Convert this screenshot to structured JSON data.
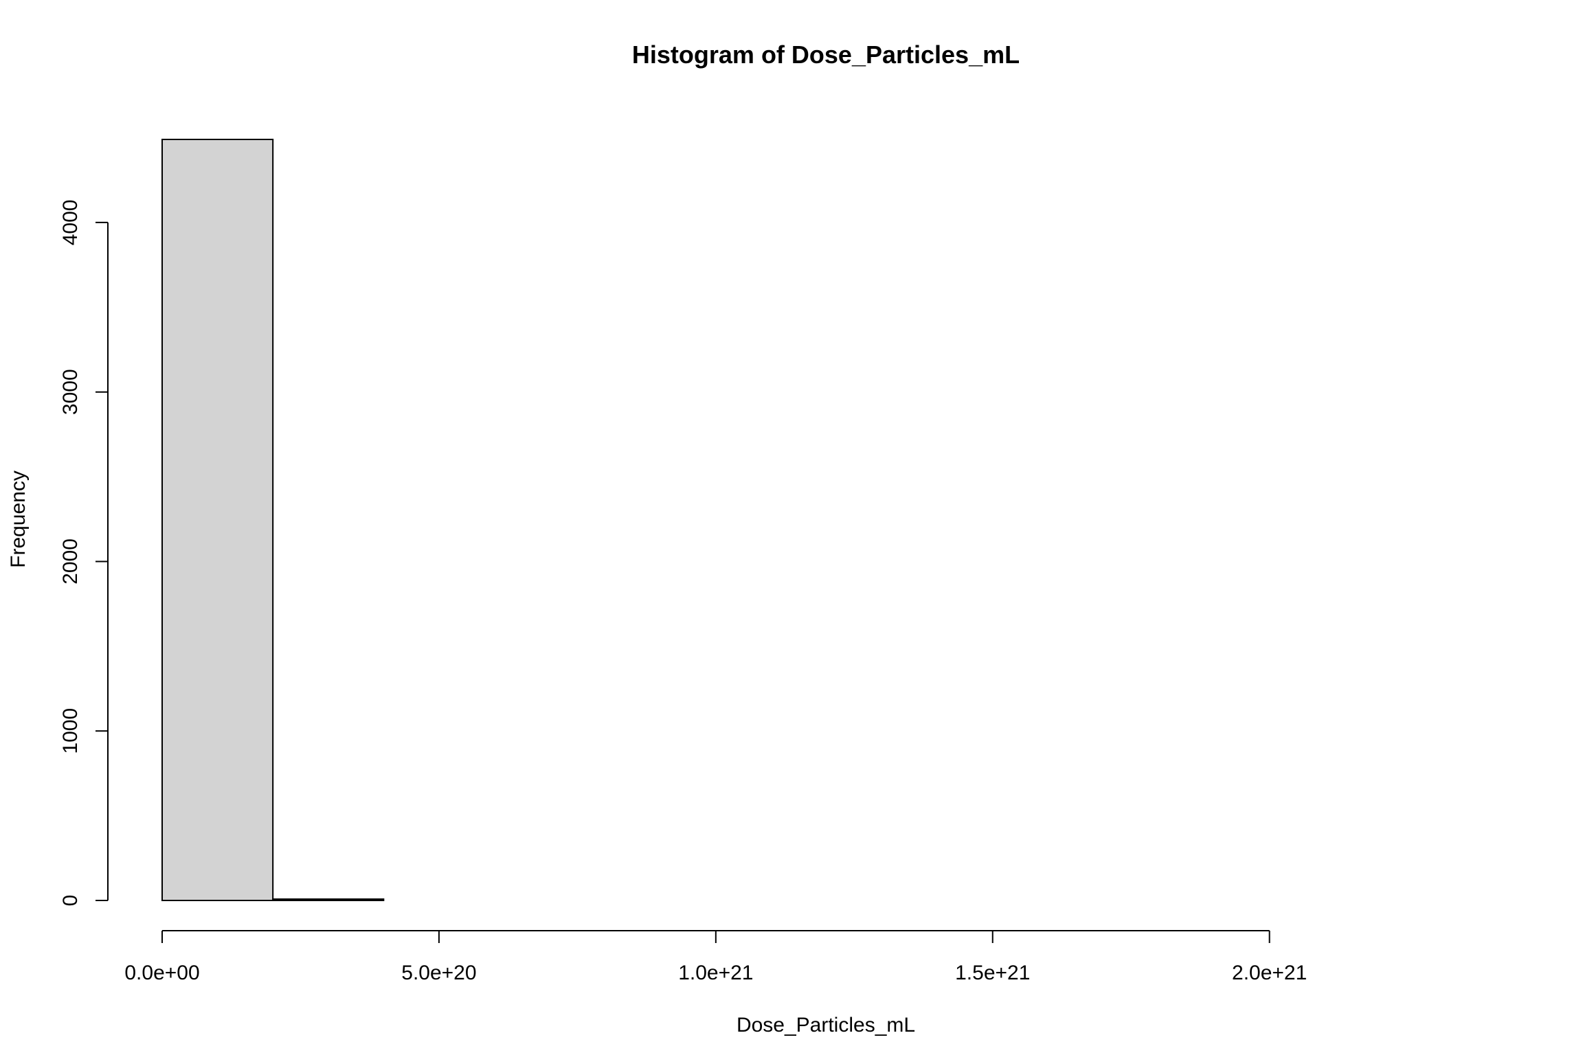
{
  "chart_data": {
    "type": "bar",
    "title": "Histogram of Dose_Particles_mL",
    "xlabel": "Dose_Particles_mL",
    "ylabel": "Frequency",
    "bar_color": "#d3d3d3",
    "border_color": "#000000",
    "bin_width": 2e+20,
    "bins": [
      {
        "start": 0,
        "end": 2e+20,
        "count": 4490
      },
      {
        "start": 2e+20,
        "end": 4e+20,
        "count": 8
      },
      {
        "start": 4e+20,
        "end": 6e+20,
        "count": 0
      },
      {
        "start": 6e+20,
        "end": 8e+20,
        "count": 0
      },
      {
        "start": 8e+20,
        "end": 1e+21,
        "count": 0
      },
      {
        "start": 1e+21,
        "end": 1.2e+21,
        "count": 0
      },
      {
        "start": 1.2e+21,
        "end": 1.4e+21,
        "count": 0
      },
      {
        "start": 1.4e+21,
        "end": 1.6e+21,
        "count": 0
      },
      {
        "start": 1.6e+21,
        "end": 1.8e+21,
        "count": 0
      },
      {
        "start": 1.8e+21,
        "end": 2e+21,
        "count": 0
      },
      {
        "start": 2e+21,
        "end": 2.2e+21,
        "count": 0
      },
      {
        "start": 2.2e+21,
        "end": 2.4e+21,
        "count": 0
      }
    ],
    "xlim": [
      0,
      2.4e+21
    ],
    "ylim": [
      0,
      4490
    ],
    "x_ticks": [
      0,
      5e+20,
      1e+21,
      1.5e+21,
      2e+21
    ],
    "x_tick_labels": [
      "0.0e+00",
      "5.0e+20",
      "1.0e+21",
      "1.5e+21",
      "2.0e+21"
    ],
    "y_ticks": [
      0,
      1000,
      2000,
      3000,
      4000
    ],
    "y_tick_labels": [
      "0",
      "1000",
      "2000",
      "3000",
      "4000"
    ],
    "grid": false,
    "legend": "none"
  }
}
